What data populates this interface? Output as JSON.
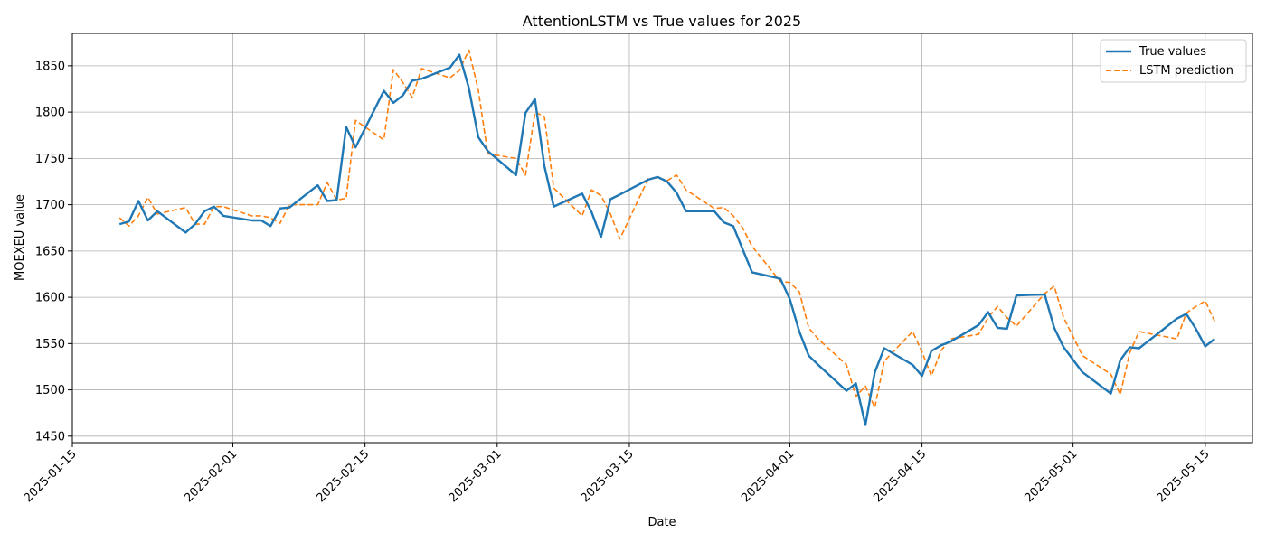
{
  "chart_data": {
    "type": "line",
    "title": "AttentionLSTM vs True values for 2025",
    "xlabel": "Date",
    "ylabel": "MOEXEU value",
    "x_axis_type": "date",
    "xlim": [
      "2025-01-15",
      "2025-05-20"
    ],
    "ylim": [
      1443,
      1885
    ],
    "x_ticks": [
      "2025-01-15",
      "2025-02-01",
      "2025-02-15",
      "2025-03-01",
      "2025-03-15",
      "2025-04-01",
      "2025-04-15",
      "2025-05-01",
      "2025-05-15"
    ],
    "y_ticks": [
      1450,
      1500,
      1550,
      1600,
      1650,
      1700,
      1750,
      1800,
      1850
    ],
    "grid": true,
    "legend_position": "top-right",
    "x": [
      "2025-01-20",
      "2025-01-21",
      "2025-01-22",
      "2025-01-23",
      "2025-01-24",
      "2025-01-27",
      "2025-01-28",
      "2025-01-29",
      "2025-01-30",
      "2025-01-31",
      "2025-02-03",
      "2025-02-04",
      "2025-02-05",
      "2025-02-06",
      "2025-02-07",
      "2025-02-10",
      "2025-02-11",
      "2025-02-12",
      "2025-02-13",
      "2025-02-14",
      "2025-02-17",
      "2025-02-18",
      "2025-02-19",
      "2025-02-20",
      "2025-02-21",
      "2025-02-24",
      "2025-02-25",
      "2025-02-26",
      "2025-02-27",
      "2025-02-28",
      "2025-03-03",
      "2025-03-04",
      "2025-03-05",
      "2025-03-06",
      "2025-03-07",
      "2025-03-10",
      "2025-03-11",
      "2025-03-12",
      "2025-03-13",
      "2025-03-14",
      "2025-03-17",
      "2025-03-18",
      "2025-03-19",
      "2025-03-20",
      "2025-03-21",
      "2025-03-24",
      "2025-03-25",
      "2025-03-26",
      "2025-03-27",
      "2025-03-28",
      "2025-03-31",
      "2025-04-01",
      "2025-04-02",
      "2025-04-03",
      "2025-04-04",
      "2025-04-07",
      "2025-04-08",
      "2025-04-09",
      "2025-04-10",
      "2025-04-11",
      "2025-04-14",
      "2025-04-15",
      "2025-04-16",
      "2025-04-17",
      "2025-04-18",
      "2025-04-21",
      "2025-04-22",
      "2025-04-23",
      "2025-04-24",
      "2025-04-25",
      "2025-04-28",
      "2025-04-29",
      "2025-04-30",
      "2025-05-02",
      "2025-05-05",
      "2025-05-06",
      "2025-05-07",
      "2025-05-08",
      "2025-05-12",
      "2025-05-13",
      "2025-05-14",
      "2025-05-15",
      "2025-05-16"
    ],
    "series": [
      {
        "name": "True values",
        "color": "#1f77b4",
        "style": "solid",
        "values": [
          1679,
          1682,
          1704,
          1683,
          1693,
          1670,
          1679,
          1693,
          1698,
          1688,
          1683,
          1683,
          1677,
          1696,
          1697,
          1721,
          1704,
          1705,
          1784,
          1762,
          1823,
          1810,
          1818,
          1834,
          1836,
          1848,
          1862,
          1826,
          1773,
          1758,
          1732,
          1799,
          1814,
          1742,
          1698,
          1712,
          1692,
          1665,
          1706,
          1711,
          1727,
          1730,
          1725,
          1713,
          1693,
          1693,
          1681,
          1677,
          1652,
          1627,
          1620,
          1598,
          1563,
          1537,
          1527,
          1499,
          1507,
          1462,
          1519,
          1545,
          1527,
          1515,
          1542,
          1548,
          1552,
          1570,
          1584,
          1567,
          1566,
          1602,
          1603,
          1567,
          1546,
          1519,
          1496,
          1532,
          1546,
          1545,
          1577,
          1582,
          1566,
          1547,
          1555
        ]
      },
      {
        "name": "LSTM prediction",
        "color": "#ff7f0e",
        "style": "dashed",
        "values": [
          1686,
          1677,
          1688,
          1708,
          1690,
          1697,
          1679,
          1679,
          1698,
          1698,
          1688,
          1688,
          1686,
          1680,
          1700,
          1700,
          1724,
          1705,
          1707,
          1791,
          1770,
          1846,
          1832,
          1816,
          1847,
          1837,
          1845,
          1867,
          1824,
          1755,
          1750,
          1732,
          1800,
          1795,
          1718,
          1688,
          1716,
          1710,
          1690,
          1663,
          1728,
          1729,
          1726,
          1732,
          1716,
          1696,
          1697,
          1688,
          1675,
          1655,
          1617,
          1616,
          1606,
          1567,
          1555,
          1527,
          1493,
          1504,
          1481,
          1531,
          1563,
          1541,
          1515,
          1542,
          1555,
          1560,
          1578,
          1590,
          1578,
          1569,
          1604,
          1612,
          1578,
          1537,
          1517,
          1495,
          1540,
          1563,
          1555,
          1583,
          1590,
          1596,
          1574
        ]
      }
    ]
  }
}
